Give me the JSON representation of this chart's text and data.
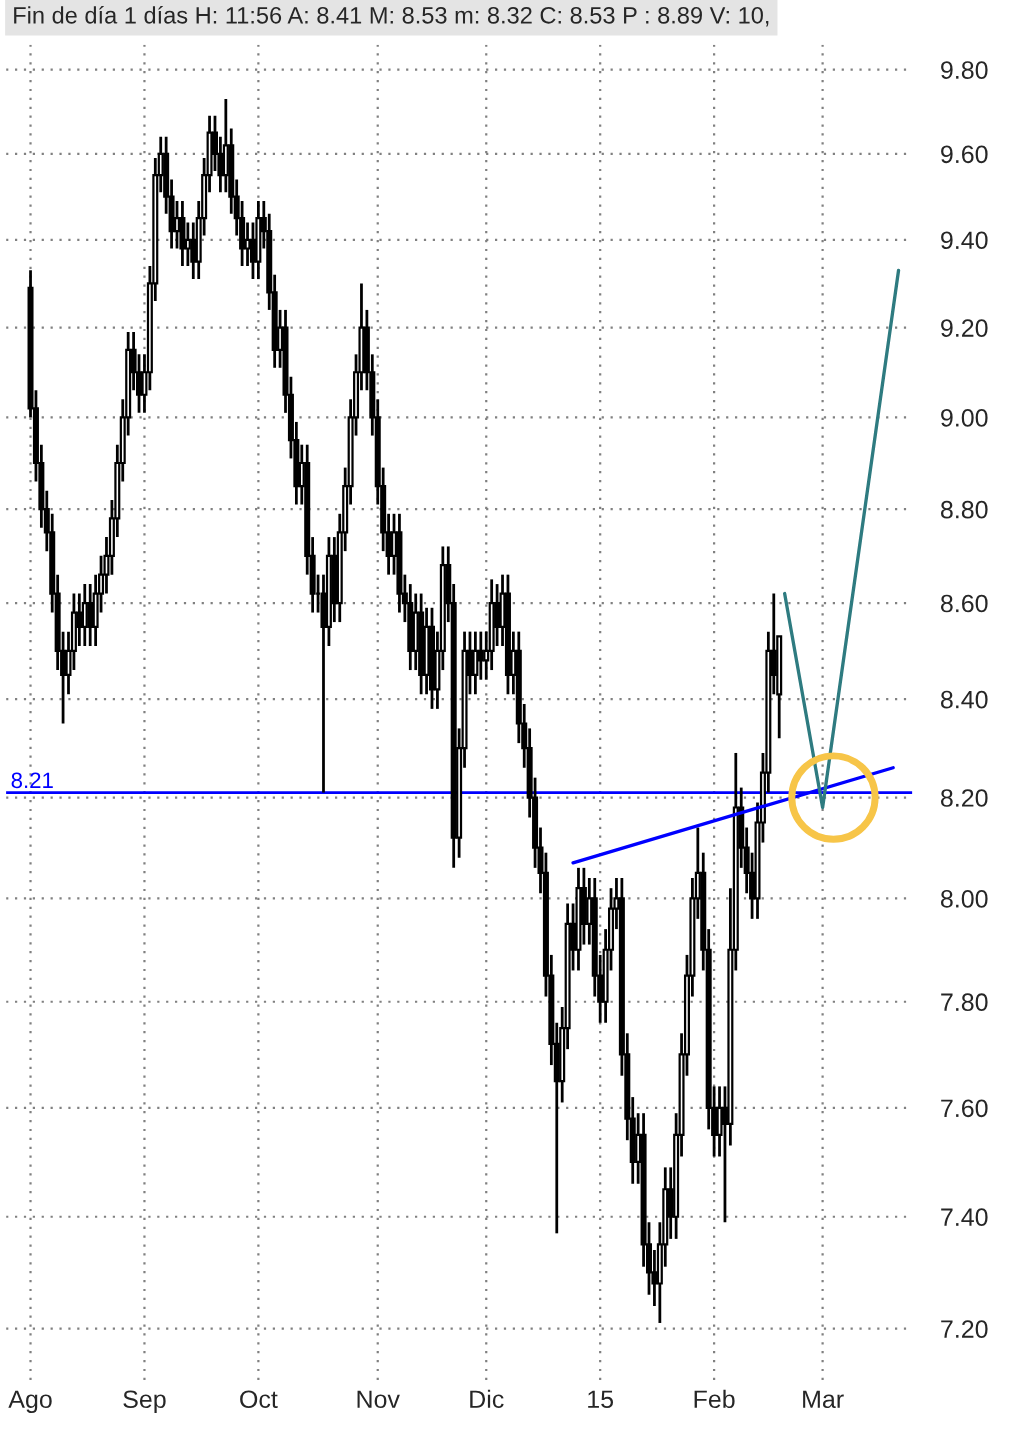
{
  "chart_data": {
    "type": "candlestick",
    "title": "Fin de día 1 días H: 11:56 A: 8.41 M: 8.53 m: 8.32 C: 8.53 P : 8.89 V: 10,",
    "categories": [
      "Ago",
      null,
      null,
      null,
      null,
      null,
      null,
      null,
      null,
      null,
      null,
      null,
      null,
      null,
      null,
      null,
      null,
      null,
      null,
      null,
      null,
      "Sep",
      null,
      null,
      null,
      null,
      null,
      null,
      null,
      null,
      null,
      null,
      null,
      null,
      null,
      null,
      null,
      null,
      null,
      null,
      null,
      null,
      "Oct",
      null,
      null,
      null,
      null,
      null,
      null,
      null,
      null,
      null,
      null,
      null,
      null,
      null,
      null,
      null,
      null,
      null,
      null,
      null,
      null,
      null,
      "Nov",
      null,
      null,
      null,
      null,
      null,
      null,
      null,
      null,
      null,
      null,
      null,
      null,
      null,
      null,
      null,
      null,
      null,
      null,
      null,
      "Dic",
      null,
      null,
      null,
      null,
      null,
      null,
      null,
      null,
      null,
      null,
      null,
      null,
      null,
      null,
      null,
      null,
      null,
      null,
      null,
      null,
      "15",
      null,
      null,
      null,
      null,
      null,
      null,
      null,
      null,
      null,
      null,
      null,
      null,
      null,
      null,
      null,
      null,
      null,
      null,
      null,
      null,
      "Feb",
      null,
      null,
      null,
      null,
      null,
      null,
      null,
      null,
      null,
      null,
      null,
      null,
      null,
      null,
      null,
      null,
      null,
      null,
      null,
      "Mar",
      null,
      null,
      null,
      null,
      null,
      null,
      null,
      null,
      null,
      null,
      null,
      null,
      null,
      null,
      null,
      null
    ],
    "ohlc": [
      [
        9.29,
        9.33,
        9.0,
        9.02
      ],
      [
        9.02,
        9.06,
        8.86,
        8.9
      ],
      [
        8.9,
        8.94,
        8.76,
        8.8
      ],
      [
        8.8,
        8.84,
        8.71,
        8.75
      ],
      [
        8.75,
        8.79,
        8.58,
        8.62
      ],
      [
        8.62,
        8.66,
        8.46,
        8.5
      ],
      [
        8.5,
        8.54,
        8.35,
        8.45
      ],
      [
        8.45,
        8.54,
        8.41,
        8.5
      ],
      [
        8.5,
        8.62,
        8.46,
        8.58
      ],
      [
        8.58,
        8.62,
        8.51,
        8.55
      ],
      [
        8.55,
        8.64,
        8.51,
        8.6
      ],
      [
        8.6,
        8.64,
        8.51,
        8.55
      ],
      [
        8.55,
        8.66,
        8.51,
        8.62
      ],
      [
        8.62,
        8.7,
        8.58,
        8.66
      ],
      [
        8.66,
        8.74,
        8.62,
        8.7
      ],
      [
        8.7,
        8.82,
        8.66,
        8.78
      ],
      [
        8.78,
        8.94,
        8.74,
        8.9
      ],
      [
        8.9,
        9.04,
        8.86,
        9.0
      ],
      [
        9.0,
        9.19,
        8.96,
        9.15
      ],
      [
        9.15,
        9.19,
        9.06,
        9.1
      ],
      [
        9.1,
        9.14,
        9.01,
        9.05
      ],
      [
        9.05,
        9.14,
        9.01,
        9.1
      ],
      [
        9.1,
        9.34,
        9.06,
        9.3
      ],
      [
        9.3,
        9.59,
        9.26,
        9.55
      ],
      [
        9.55,
        9.64,
        9.51,
        9.6
      ],
      [
        9.6,
        9.64,
        9.46,
        9.5
      ],
      [
        9.5,
        9.54,
        9.38,
        9.42
      ],
      [
        9.42,
        9.49,
        9.38,
        9.45
      ],
      [
        9.45,
        9.49,
        9.34,
        9.38
      ],
      [
        9.38,
        9.44,
        9.34,
        9.4
      ],
      [
        9.4,
        9.44,
        9.31,
        9.35
      ],
      [
        9.35,
        9.49,
        9.31,
        9.45
      ],
      [
        9.45,
        9.59,
        9.41,
        9.55
      ],
      [
        9.55,
        9.69,
        9.51,
        9.65
      ],
      [
        9.65,
        9.69,
        9.56,
        9.6
      ],
      [
        9.6,
        9.64,
        9.51,
        9.55
      ],
      [
        9.55,
        9.73,
        9.51,
        9.62
      ],
      [
        9.62,
        9.66,
        9.46,
        9.5
      ],
      [
        9.5,
        9.54,
        9.41,
        9.45
      ],
      [
        9.45,
        9.49,
        9.34,
        9.38
      ],
      [
        9.38,
        9.44,
        9.34,
        9.4
      ],
      [
        9.4,
        9.44,
        9.31,
        9.35
      ],
      [
        9.35,
        9.49,
        9.31,
        9.45
      ],
      [
        9.45,
        9.49,
        9.38,
        9.42
      ],
      [
        9.42,
        9.46,
        9.24,
        9.28
      ],
      [
        9.28,
        9.32,
        9.11,
        9.15
      ],
      [
        9.15,
        9.24,
        9.11,
        9.2
      ],
      [
        9.2,
        9.24,
        9.01,
        9.05
      ],
      [
        9.05,
        9.09,
        8.91,
        8.95
      ],
      [
        8.95,
        8.99,
        8.81,
        8.85
      ],
      [
        8.85,
        8.94,
        8.81,
        8.9
      ],
      [
        8.9,
        8.94,
        8.66,
        8.7
      ],
      [
        8.7,
        8.74,
        8.58,
        8.62
      ],
      [
        8.62,
        8.66,
        8.58,
        8.62
      ],
      [
        8.62,
        8.66,
        8.21,
        8.55
      ],
      [
        8.55,
        8.74,
        8.51,
        8.7
      ],
      [
        8.7,
        8.74,
        8.56,
        8.6
      ],
      [
        8.6,
        8.79,
        8.56,
        8.75
      ],
      [
        8.75,
        8.89,
        8.71,
        8.85
      ],
      [
        8.85,
        9.04,
        8.81,
        9.0
      ],
      [
        9.0,
        9.14,
        8.96,
        9.1
      ],
      [
        9.1,
        9.3,
        9.06,
        9.2
      ],
      [
        9.2,
        9.24,
        9.06,
        9.1
      ],
      [
        9.1,
        9.14,
        8.96,
        9.0
      ],
      [
        9.0,
        9.04,
        8.81,
        8.85
      ],
      [
        8.85,
        8.89,
        8.71,
        8.75
      ],
      [
        8.75,
        8.79,
        8.66,
        8.7
      ],
      [
        8.7,
        8.79,
        8.66,
        8.75
      ],
      [
        8.75,
        8.79,
        8.58,
        8.62
      ],
      [
        8.62,
        8.66,
        8.56,
        8.6
      ],
      [
        8.6,
        8.64,
        8.46,
        8.5
      ],
      [
        8.5,
        8.62,
        8.46,
        8.58
      ],
      [
        8.58,
        8.62,
        8.41,
        8.45
      ],
      [
        8.45,
        8.59,
        8.41,
        8.55
      ],
      [
        8.55,
        8.59,
        8.38,
        8.42
      ],
      [
        8.42,
        8.54,
        8.38,
        8.5
      ],
      [
        8.5,
        8.72,
        8.46,
        8.68
      ],
      [
        8.68,
        8.72,
        8.56,
        8.6
      ],
      [
        8.6,
        8.64,
        8.06,
        8.12
      ],
      [
        8.12,
        8.34,
        8.08,
        8.3
      ],
      [
        8.3,
        8.54,
        8.26,
        8.5
      ],
      [
        8.5,
        8.54,
        8.41,
        8.45
      ],
      [
        8.45,
        8.54,
        8.41,
        8.5
      ],
      [
        8.5,
        8.54,
        8.44,
        8.48
      ],
      [
        8.48,
        8.54,
        8.44,
        8.5
      ],
      [
        8.5,
        8.65,
        8.46,
        8.6
      ],
      [
        8.6,
        8.64,
        8.51,
        8.55
      ],
      [
        8.55,
        8.66,
        8.51,
        8.62
      ],
      [
        8.62,
        8.66,
        8.41,
        8.45
      ],
      [
        8.45,
        8.54,
        8.41,
        8.5
      ],
      [
        8.5,
        8.54,
        8.31,
        8.35
      ],
      [
        8.35,
        8.39,
        8.26,
        8.3
      ],
      [
        8.3,
        8.34,
        8.16,
        8.2
      ],
      [
        8.2,
        8.24,
        8.06,
        8.1
      ],
      [
        8.1,
        8.14,
        8.01,
        8.05
      ],
      [
        8.05,
        8.09,
        7.81,
        7.85
      ],
      [
        7.85,
        7.89,
        7.68,
        7.72
      ],
      [
        7.72,
        7.76,
        7.37,
        7.65
      ],
      [
        7.65,
        7.79,
        7.61,
        7.75
      ],
      [
        7.75,
        7.99,
        7.71,
        7.95
      ],
      [
        7.95,
        7.99,
        7.86,
        7.9
      ],
      [
        7.9,
        8.06,
        7.86,
        8.02
      ],
      [
        8.02,
        8.06,
        7.91,
        7.95
      ],
      [
        7.95,
        8.04,
        7.91,
        8.0
      ],
      [
        8.0,
        8.04,
        7.81,
        7.85
      ],
      [
        7.85,
        7.89,
        7.76,
        7.8
      ],
      [
        7.8,
        7.94,
        7.76,
        7.9
      ],
      [
        7.9,
        8.02,
        7.86,
        7.98
      ],
      [
        7.98,
        8.04,
        7.94,
        8.0
      ],
      [
        8.0,
        8.04,
        7.66,
        7.7
      ],
      [
        7.7,
        7.74,
        7.54,
        7.58
      ],
      [
        7.58,
        7.62,
        7.46,
        7.5
      ],
      [
        7.5,
        7.59,
        7.46,
        7.55
      ],
      [
        7.55,
        7.59,
        7.31,
        7.35
      ],
      [
        7.35,
        7.39,
        7.26,
        7.3
      ],
      [
        7.3,
        7.34,
        7.24,
        7.28
      ],
      [
        7.28,
        7.39,
        7.21,
        7.35
      ],
      [
        7.35,
        7.49,
        7.31,
        7.45
      ],
      [
        7.45,
        7.49,
        7.36,
        7.4
      ],
      [
        7.4,
        7.59,
        7.36,
        7.55
      ],
      [
        7.55,
        7.74,
        7.51,
        7.7
      ],
      [
        7.7,
        7.89,
        7.66,
        7.85
      ],
      [
        7.85,
        8.04,
        7.81,
        8.0
      ],
      [
        8.0,
        8.14,
        7.96,
        8.05
      ],
      [
        8.05,
        8.09,
        7.86,
        7.9
      ],
      [
        7.9,
        7.94,
        7.56,
        7.6
      ],
      [
        7.6,
        7.64,
        7.51,
        7.55
      ],
      [
        7.55,
        7.64,
        7.51,
        7.6
      ],
      [
        7.6,
        7.64,
        7.39,
        7.57
      ],
      [
        7.57,
        8.02,
        7.53,
        7.9
      ],
      [
        7.9,
        8.29,
        7.86,
        8.18
      ],
      [
        8.18,
        8.22,
        8.06,
        8.1
      ],
      [
        8.1,
        8.14,
        8.01,
        8.05
      ],
      [
        8.05,
        8.09,
        7.96,
        8.0
      ],
      [
        8.0,
        8.19,
        7.96,
        8.15
      ],
      [
        8.15,
        8.29,
        8.11,
        8.25
      ],
      [
        8.25,
        8.54,
        8.21,
        8.5
      ],
      [
        8.5,
        8.62,
        8.41,
        8.45
      ],
      [
        8.41,
        8.53,
        8.32,
        8.53
      ],
      null,
      null,
      null,
      null,
      null,
      null,
      null,
      null,
      null,
      null,
      null,
      null,
      null,
      null,
      null,
      null,
      null,
      null,
      null,
      null,
      null,
      null,
      null,
      null
    ],
    "series": [
      {
        "type": "line",
        "color": "#0000ff",
        "values": [
          null,
          null,
          null,
          null,
          null,
          null,
          null,
          null,
          null,
          null,
          null,
          null,
          null,
          null,
          null,
          null,
          null,
          null,
          null,
          null,
          null,
          null,
          null,
          null,
          null,
          null,
          null,
          null,
          null,
          null,
          null,
          null,
          null,
          null,
          null,
          null,
          null,
          null,
          null,
          null,
          null,
          null,
          null,
          null,
          null,
          null,
          null,
          null,
          null,
          null,
          null,
          null,
          null,
          null,
          null,
          null,
          null,
          null,
          null,
          null,
          null,
          null,
          null,
          null,
          null,
          null,
          null,
          null,
          null,
          null,
          null,
          null,
          null,
          null,
          null,
          null,
          null,
          null,
          null,
          null,
          null,
          null,
          null,
          null,
          null,
          null,
          null,
          null,
          null,
          null,
          null,
          null,
          null,
          null,
          null,
          null,
          null,
          null,
          null,
          null,
          8.07,
          null,
          null,
          null,
          null,
          null,
          null,
          null,
          null,
          null,
          null,
          null,
          null,
          null,
          null,
          null,
          null,
          null,
          null,
          null,
          null,
          null,
          null,
          null,
          null,
          null,
          null,
          null,
          null,
          null,
          null,
          null,
          null,
          null,
          null,
          null,
          null,
          null,
          null,
          null,
          null,
          null,
          null,
          null,
          null,
          null,
          null,
          null,
          null,
          null,
          null,
          null,
          null,
          null,
          null,
          null,
          null,
          null,
          null,
          8.26,
          null,
          null,
          null
        ]
      },
      {
        "type": "line",
        "color": "#2e7b80",
        "values": [
          null,
          null,
          null,
          null,
          null,
          null,
          null,
          null,
          null,
          null,
          null,
          null,
          null,
          null,
          null,
          null,
          null,
          null,
          null,
          null,
          null,
          null,
          null,
          null,
          null,
          null,
          null,
          null,
          null,
          null,
          null,
          null,
          null,
          null,
          null,
          null,
          null,
          null,
          null,
          null,
          null,
          null,
          null,
          null,
          null,
          null,
          null,
          null,
          null,
          null,
          null,
          null,
          null,
          null,
          null,
          null,
          null,
          null,
          null,
          null,
          null,
          null,
          null,
          null,
          null,
          null,
          null,
          null,
          null,
          null,
          null,
          null,
          null,
          null,
          null,
          null,
          null,
          null,
          null,
          null,
          null,
          null,
          null,
          null,
          null,
          null,
          null,
          null,
          null,
          null,
          null,
          null,
          null,
          null,
          null,
          null,
          null,
          null,
          null,
          null,
          null,
          null,
          null,
          null,
          null,
          null,
          null,
          null,
          null,
          null,
          null,
          null,
          null,
          null,
          null,
          null,
          null,
          null,
          null,
          null,
          null,
          null,
          null,
          null,
          null,
          null,
          null,
          null,
          null,
          null,
          null,
          null,
          null,
          null,
          null,
          null,
          null,
          null,
          null,
          8.62,
          null,
          null,
          null,
          null,
          null,
          null,
          8.18,
          null,
          null,
          null,
          null,
          null,
          null,
          null,
          null,
          null,
          null,
          null,
          null,
          null,
          9.33,
          null,
          null
        ]
      },
      {
        "type": "scatter",
        "color": "#f7c548",
        "marker": "circle",
        "values": [
          null,
          null,
          null,
          null,
          null,
          null,
          null,
          null,
          null,
          null,
          null,
          null,
          null,
          null,
          null,
          null,
          null,
          null,
          null,
          null,
          null,
          null,
          null,
          null,
          null,
          null,
          null,
          null,
          null,
          null,
          null,
          null,
          null,
          null,
          null,
          null,
          null,
          null,
          null,
          null,
          null,
          null,
          null,
          null,
          null,
          null,
          null,
          null,
          null,
          null,
          null,
          null,
          null,
          null,
          null,
          null,
          null,
          null,
          null,
          null,
          null,
          null,
          null,
          null,
          null,
          null,
          null,
          null,
          null,
          null,
          null,
          null,
          null,
          null,
          null,
          null,
          null,
          null,
          null,
          null,
          null,
          null,
          null,
          null,
          null,
          null,
          null,
          null,
          null,
          null,
          null,
          null,
          null,
          null,
          null,
          null,
          null,
          null,
          null,
          null,
          null,
          null,
          null,
          null,
          null,
          null,
          null,
          null,
          null,
          null,
          null,
          null,
          null,
          null,
          null,
          null,
          null,
          null,
          null,
          null,
          null,
          null,
          null,
          null,
          null,
          null,
          null,
          null,
          null,
          null,
          null,
          null,
          null,
          null,
          null,
          null,
          null,
          null,
          null,
          null,
          null,
          null,
          null,
          null,
          null,
          null,
          null,
          null,
          8.2,
          null,
          null,
          null,
          null,
          null,
          null,
          null,
          null,
          null,
          null,
          null,
          null,
          null,
          null
        ]
      }
    ],
    "ref_lines": [
      {
        "axis": "y",
        "value": 8.21,
        "label": "8.21",
        "color": "#0000ff"
      }
    ],
    "log": true,
    "ylim": [
      7.11,
      9.86
    ],
    "yticks": [
      {
        "value": 7.2,
        "label": "7.20"
      },
      {
        "value": 7.4,
        "label": "7.40"
      },
      {
        "value": 7.6,
        "label": "7.60"
      },
      {
        "value": 7.8,
        "label": "7.80"
      },
      {
        "value": 8.0,
        "label": "8.00"
      },
      {
        "value": 8.2,
        "label": "8.20"
      },
      {
        "value": 8.4,
        "label": "8.40"
      },
      {
        "value": 8.6,
        "label": "8.60"
      },
      {
        "value": 8.8,
        "label": "8.80"
      },
      {
        "value": 9.0,
        "label": "9.00"
      },
      {
        "value": 9.2,
        "label": "9.20"
      },
      {
        "value": 9.4,
        "label": "9.40"
      },
      {
        "value": 9.6,
        "label": "9.60"
      },
      {
        "value": 9.8,
        "label": "9.80"
      }
    ],
    "grid": true
  }
}
